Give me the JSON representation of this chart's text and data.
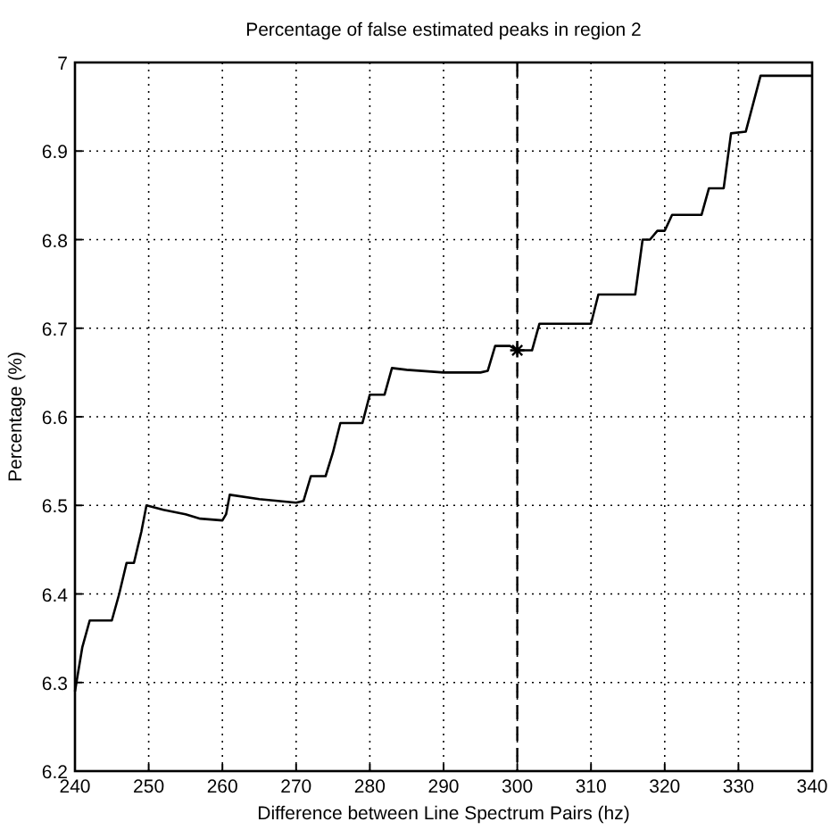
{
  "chart_data": {
    "type": "line",
    "title": "Percentage of false estimated peaks in region 2",
    "xlabel": "Difference between Line Spectrum Pairs (hz)",
    "ylabel": "Percentage (%)",
    "xlim": [
      240,
      340
    ],
    "ylim": [
      6.2,
      7
    ],
    "xticks": [
      240,
      250,
      260,
      270,
      280,
      290,
      300,
      310,
      320,
      330,
      340
    ],
    "yticks": [
      6.2,
      6.3,
      6.4,
      6.5,
      6.6,
      6.7,
      6.8,
      6.9,
      7
    ],
    "grid": true,
    "ref_lines": [
      {
        "axis": "x",
        "value": 300,
        "line_style": "dashed",
        "color": "#000000"
      }
    ],
    "series": [
      {
        "type": "line",
        "color": "#000000",
        "x": [
          240,
          241,
          242,
          245,
          246,
          247,
          248,
          249,
          249.7,
          252,
          255,
          257,
          260,
          260.5,
          261,
          265,
          270,
          271,
          272,
          274,
          275,
          276,
          279,
          280,
          282,
          283,
          285,
          290,
          295,
          296,
          297,
          299,
          300,
          302,
          303,
          306,
          310,
          311,
          316,
          317,
          318,
          319,
          320,
          321,
          325,
          326,
          328,
          329,
          331,
          333,
          340
        ],
        "values": [
          6.29,
          6.34,
          6.37,
          6.37,
          6.4,
          6.435,
          6.435,
          6.47,
          6.5,
          6.495,
          6.49,
          6.485,
          6.483,
          6.49,
          6.512,
          6.507,
          6.503,
          6.505,
          6.533,
          6.533,
          6.56,
          6.593,
          6.593,
          6.625,
          6.625,
          6.655,
          6.653,
          6.65,
          6.65,
          6.652,
          6.68,
          6.68,
          6.675,
          6.675,
          6.705,
          6.705,
          6.705,
          6.738,
          6.738,
          6.8,
          6.8,
          6.81,
          6.81,
          6.828,
          6.828,
          6.858,
          6.858,
          6.92,
          6.922,
          6.985,
          6.985
        ]
      },
      {
        "type": "scatter",
        "color": "#000000",
        "marker": "cross",
        "x": [
          300
        ],
        "values": [
          6.675
        ]
      }
    ]
  }
}
